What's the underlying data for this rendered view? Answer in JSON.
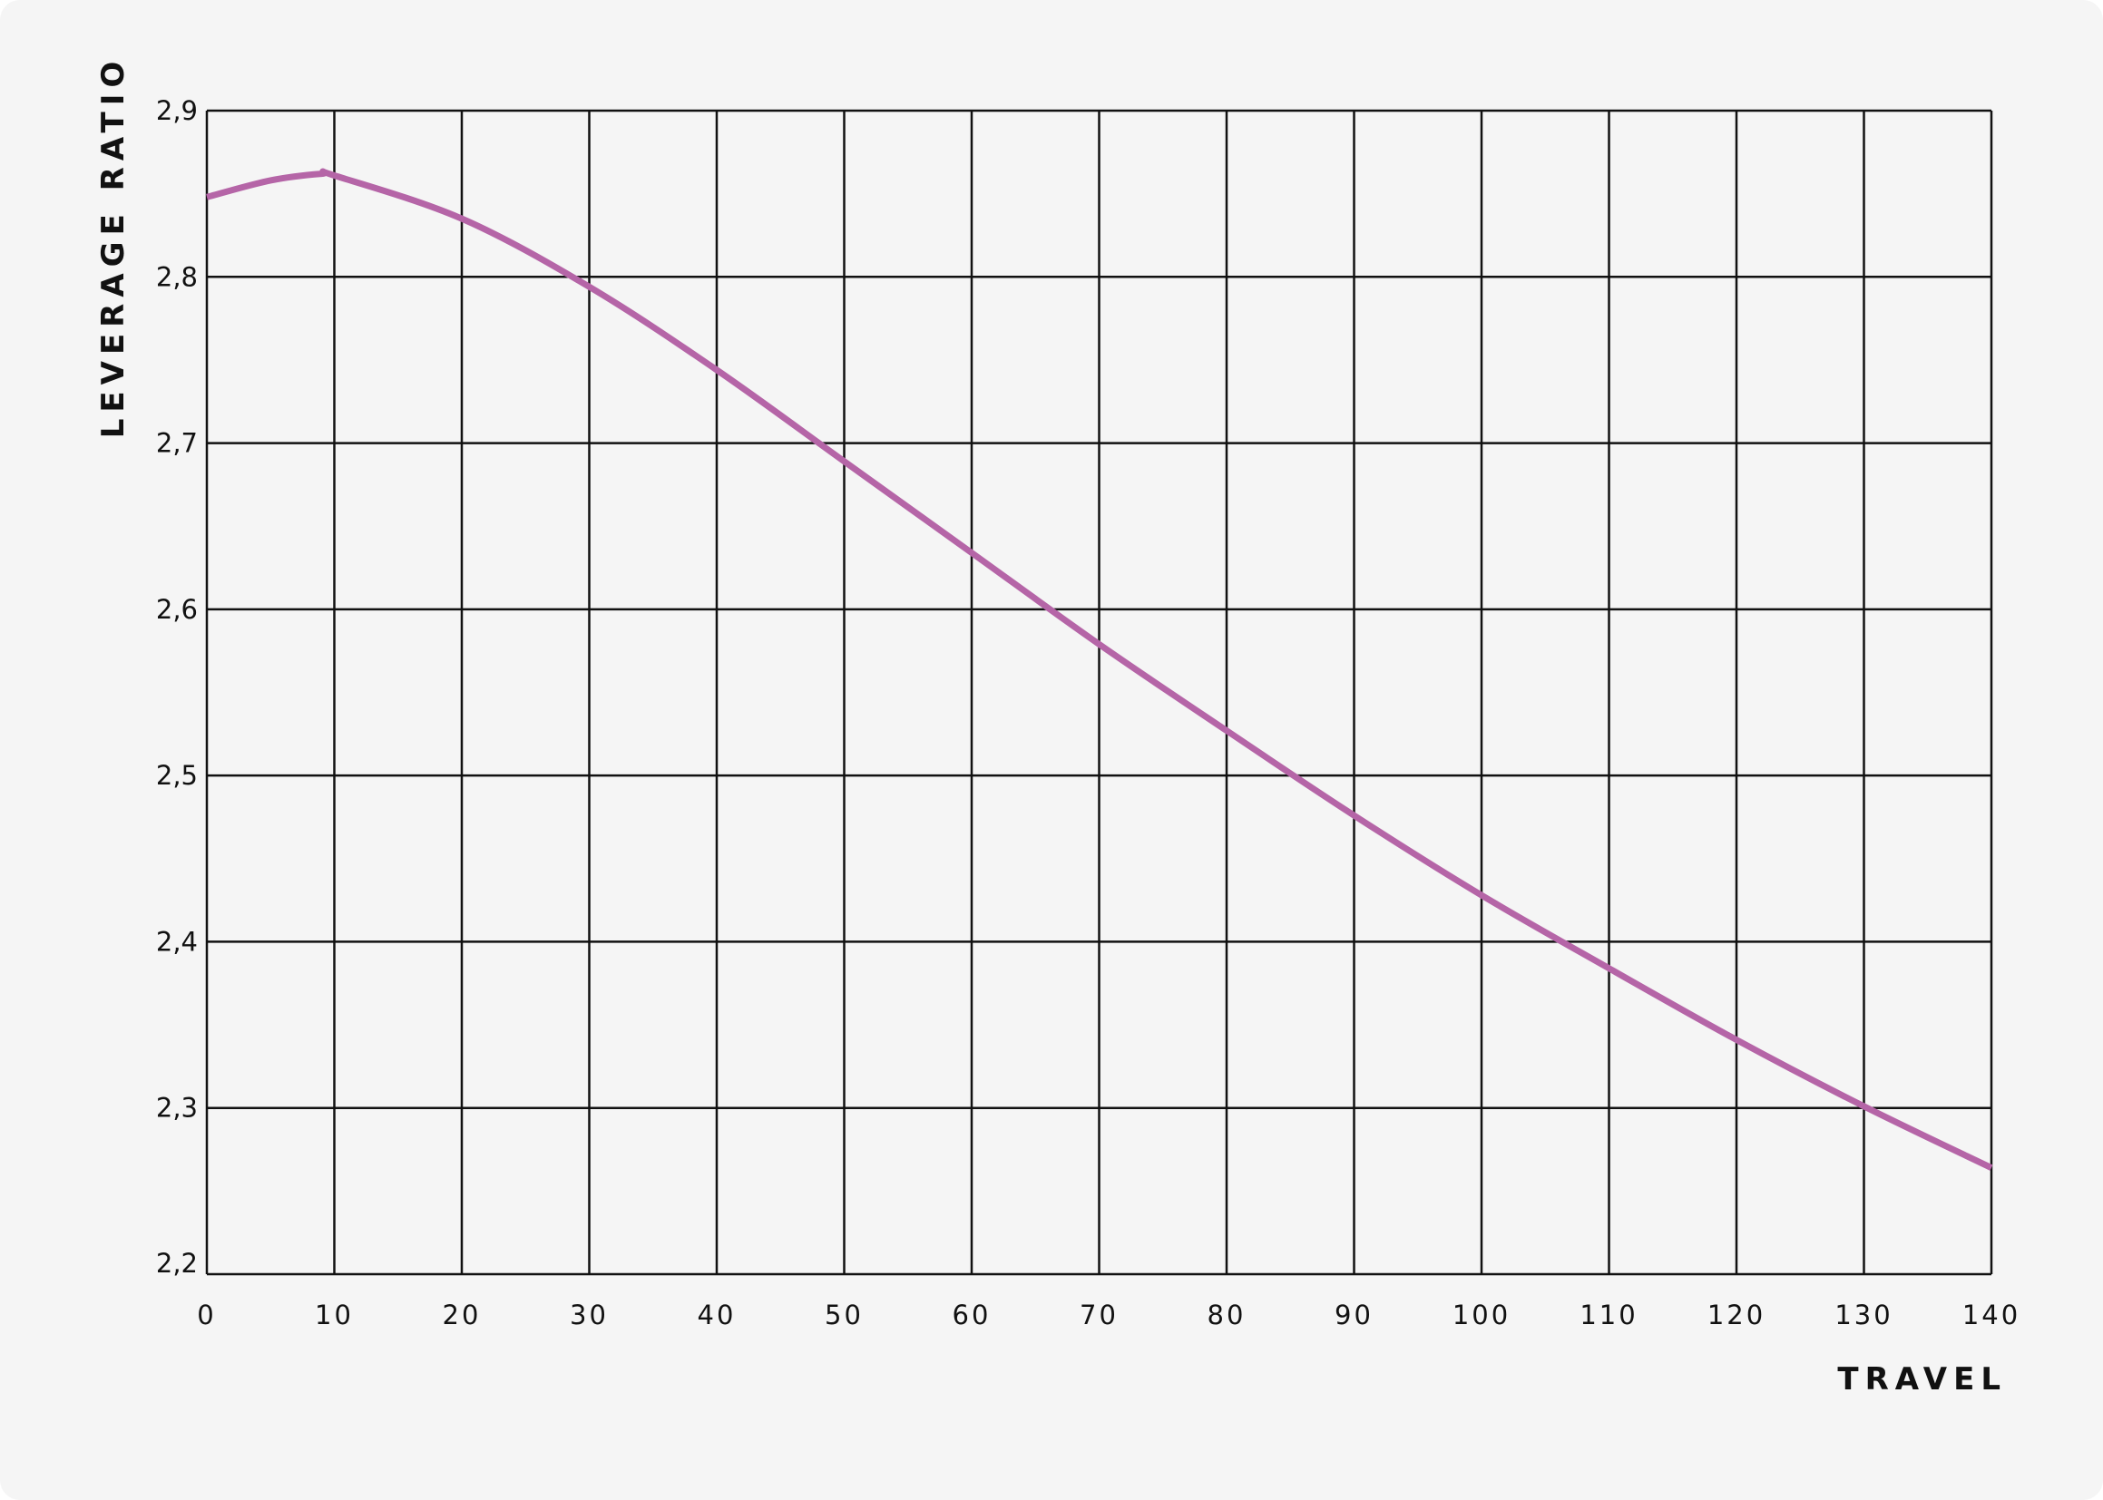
{
  "chart_data": {
    "type": "line",
    "title": "",
    "xlabel": "TRAVEL",
    "ylabel": "LEVERAGE RATIO",
    "xlim": [
      0,
      140
    ],
    "ylim": [
      2.2,
      2.9
    ],
    "x_ticks": [
      0,
      10,
      20,
      30,
      40,
      50,
      60,
      70,
      80,
      90,
      100,
      110,
      120,
      130,
      140
    ],
    "x_tick_labels": [
      "0",
      "10",
      "20",
      "30",
      "40",
      "50",
      "60",
      "70",
      "80",
      "90",
      "100",
      "110",
      "120",
      "130",
      "140"
    ],
    "y_ticks": [
      2.2,
      2.3,
      2.4,
      2.5,
      2.6,
      2.7,
      2.8,
      2.9
    ],
    "y_tick_labels": [
      "2,2",
      "2,3",
      "2,4",
      "2,5",
      "2,6",
      "2,7",
      "2,8",
      "2,9"
    ],
    "grid": true,
    "line_color": "#b565a7",
    "series": [
      {
        "x": [
          0,
          5,
          9,
          10,
          20,
          30,
          40,
          50,
          60,
          70,
          80,
          90,
          100,
          110,
          120,
          130,
          140
        ],
        "y": [
          2.848,
          2.858,
          2.862,
          2.861,
          2.835,
          2.794,
          2.744,
          2.689,
          2.634,
          2.579,
          2.527,
          2.476,
          2.428,
          2.384,
          2.341,
          2.301,
          2.264
        ]
      }
    ]
  }
}
